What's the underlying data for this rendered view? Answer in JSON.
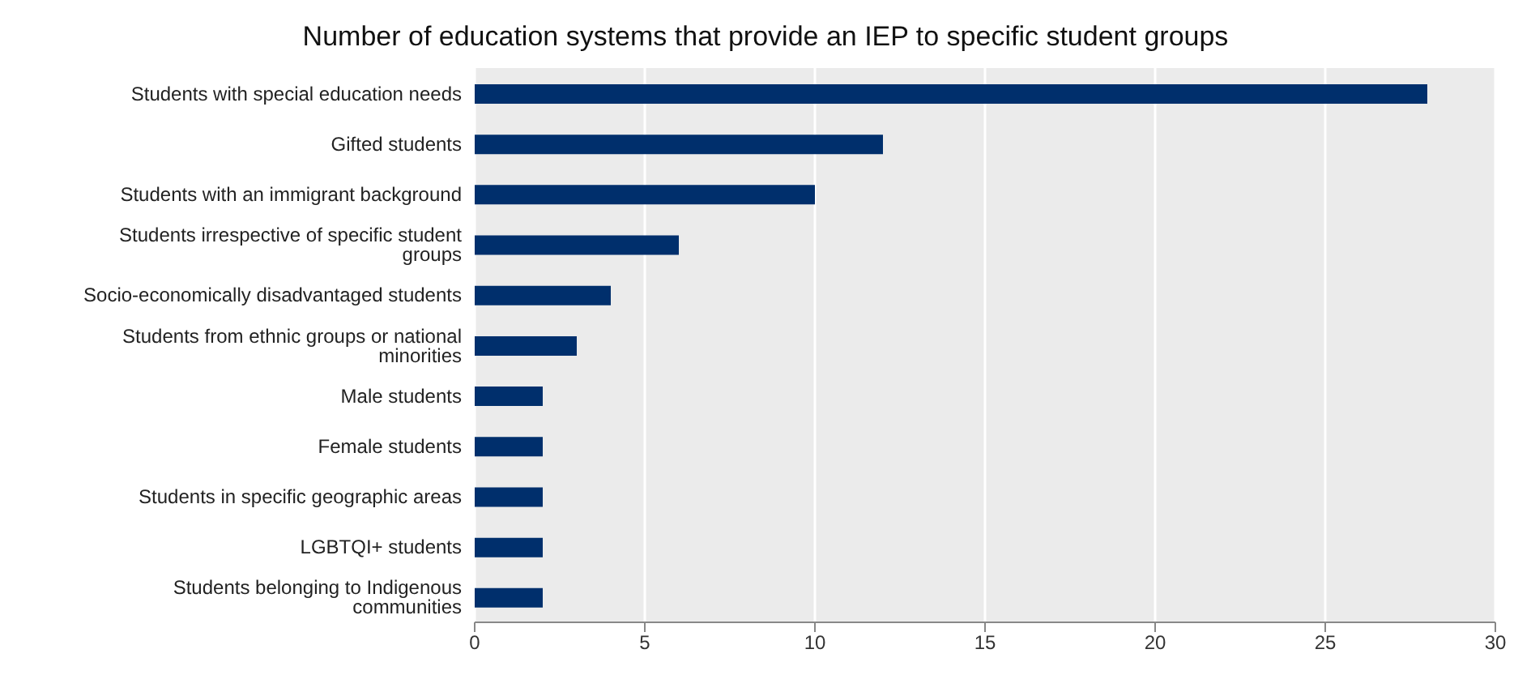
{
  "chart_data": {
    "type": "bar",
    "orientation": "horizontal",
    "title": "Number of education systems that provide an IEP to specific student groups",
    "categories": [
      "Students with special education needs",
      "Gifted students",
      "Students with an immigrant background",
      "Students irrespective of specific student groups",
      "Socio-economically disadvantaged students",
      "Students from ethnic groups or national minorities",
      "Male students",
      "Female students",
      "Students in specific geographic areas",
      "LGBTQI+ students",
      "Students belonging to Indigenous communities"
    ],
    "values": [
      28,
      12,
      10,
      6,
      4,
      3,
      2,
      2,
      2,
      2,
      2
    ],
    "color": "#002f6c",
    "xlim": [
      0,
      30
    ],
    "xticks": [
      0,
      5,
      10,
      15,
      20,
      25,
      30
    ],
    "grid": "x"
  }
}
